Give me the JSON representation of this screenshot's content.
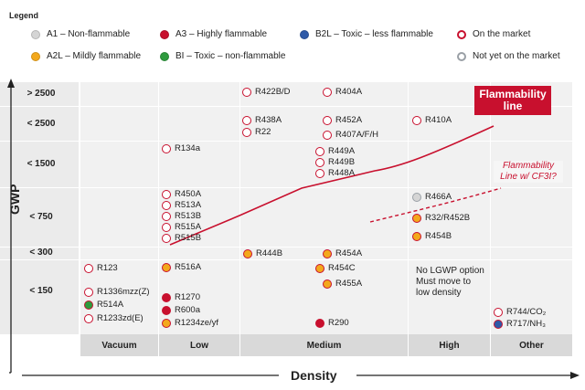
{
  "legend": {
    "title": "Legend",
    "items": [
      {
        "label": "A1 – Non-flammable",
        "color": "#d5d5d5"
      },
      {
        "label": "A3 – Highly flammable",
        "color": "#c8102e"
      },
      {
        "label": "B2L – Toxic – less flammable",
        "color": "#2f5aa8"
      },
      {
        "label": "On the market",
        "style": "red-ring"
      },
      {
        "label": "A2L – Mildly flammable",
        "color": "#f3a81c"
      },
      {
        "label": "BI – Toxic – non-flammable",
        "color": "#2e9a3e"
      },
      {
        "label": "Not yet on the market",
        "style": "gray-ring"
      }
    ]
  },
  "axes": {
    "y_title": "GWP",
    "x_title": "Density",
    "rows": [
      "> 2500",
      "< 2500",
      "< 1500",
      "< 750",
      "< 300",
      "< 150"
    ],
    "cols": [
      "Vacuum",
      "Low",
      "Medium",
      "High",
      "Other"
    ]
  },
  "refrigerants": [
    {
      "name": "R422B/D",
      "class": "A1",
      "status": "on"
    },
    {
      "name": "R404A",
      "class": "A1",
      "status": "on"
    },
    {
      "name": "R438A",
      "class": "A1",
      "status": "on"
    },
    {
      "name": "R22",
      "class": "A1",
      "status": "on"
    },
    {
      "name": "R452A",
      "class": "A1",
      "status": "on"
    },
    {
      "name": "R407A/F/H",
      "class": "A1",
      "status": "on"
    },
    {
      "name": "R410A",
      "class": "A1",
      "status": "on"
    },
    {
      "name": "R134a",
      "class": "A1",
      "status": "on"
    },
    {
      "name": "R449A",
      "class": "A1",
      "status": "on"
    },
    {
      "name": "R449B",
      "class": "A1",
      "status": "on"
    },
    {
      "name": "R448A",
      "class": "A1",
      "status": "on"
    },
    {
      "name": "R450A",
      "class": "A1",
      "status": "on"
    },
    {
      "name": "R513A",
      "class": "A1",
      "status": "on"
    },
    {
      "name": "R513B",
      "class": "A1",
      "status": "on"
    },
    {
      "name": "R515A",
      "class": "A1",
      "status": "on"
    },
    {
      "name": "R515B",
      "class": "A1",
      "status": "on"
    },
    {
      "name": "R466A",
      "class": "A1",
      "status": "not-yet"
    },
    {
      "name": "R32/R452B",
      "class": "A2L",
      "status": "on"
    },
    {
      "name": "R454B",
      "class": "A2L",
      "status": "on"
    },
    {
      "name": "R444B",
      "class": "A2L",
      "status": "on"
    },
    {
      "name": "R454A",
      "class": "A2L",
      "status": "on"
    },
    {
      "name": "R123",
      "class": "A1",
      "status": "on"
    },
    {
      "name": "R516A",
      "class": "A2L",
      "status": "on"
    },
    {
      "name": "R454C",
      "class": "A2L",
      "status": "on"
    },
    {
      "name": "R455A",
      "class": "A2L",
      "status": "on"
    },
    {
      "name": "R1336mzz(Z)",
      "class": "A1",
      "status": "on"
    },
    {
      "name": "R514A",
      "class": "BI",
      "status": "on"
    },
    {
      "name": "R1233zd(E)",
      "class": "A1",
      "status": "on"
    },
    {
      "name": "R1270",
      "class": "A3",
      "status": "on"
    },
    {
      "name": "R600a",
      "class": "A3",
      "status": "on"
    },
    {
      "name": "R1234ze/yf",
      "class": "A2L",
      "status": "on"
    },
    {
      "name": "R290",
      "class": "A3",
      "status": "on"
    },
    {
      "name": "R744/CO₂",
      "class": "A1",
      "status": "on"
    },
    {
      "name": "R717/NH₃",
      "class": "B2L",
      "status": "on"
    }
  ],
  "note": {
    "line1": "No LGWP option",
    "line2": "Must move to",
    "line3": "low density"
  },
  "callouts": {
    "flammability_line": "Flammability line",
    "cf3i_line_1": "Flammability",
    "cf3i_line_2": "Line w/ CF3I?"
  },
  "colors": {
    "red": "#c8102e",
    "a1": "#d5d5d5",
    "a2l": "#f3a81c",
    "a3": "#c8102e",
    "b2l": "#2f5aa8",
    "bi": "#2e9a3e",
    "grid_bg": "#f1f1f1"
  }
}
